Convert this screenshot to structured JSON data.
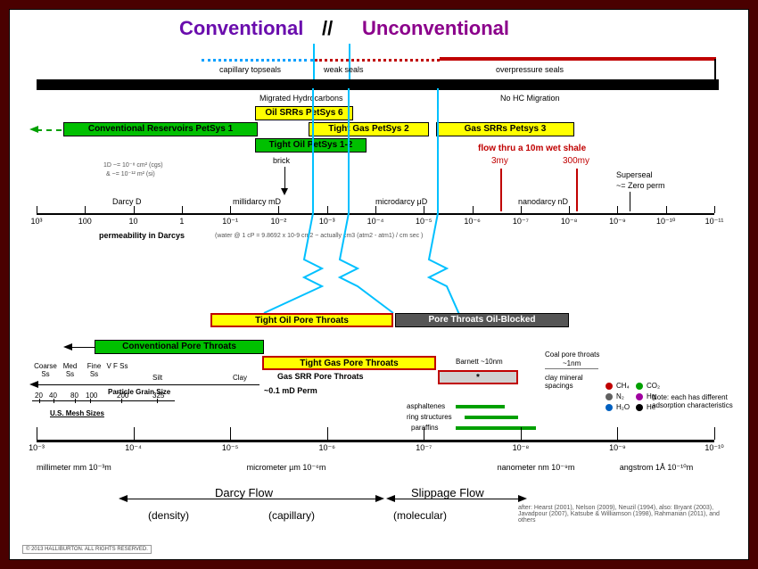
{
  "header": {
    "conventional": "Conventional",
    "separator": "//",
    "unconventional": "Unconventional"
  },
  "seals": {
    "capillary": "capillary topseals",
    "weak": "weak seals",
    "overpressure": "overpressure seals"
  },
  "hydrocarbons": {
    "migrated": "Migrated Hydrocarbons",
    "no_migration": "No HC Migration"
  },
  "bars_top": {
    "oil_srr": "Oil SRRs PetSys 6",
    "conv_res": "Conventional Reservoirs PetSys 1",
    "tight_gas": "Tight Gas PetSys 2",
    "gas_srr": "Gas SRRs Petsys 3",
    "tight_oil": "Tight Oil PetSys 1-2"
  },
  "annotations": {
    "brick": "brick",
    "darcy_d": "Darcy D",
    "darcy_note1": "1D ~= 10⁻⁸ cm² (cgs)",
    "darcy_note2": "& ~= 10⁻¹² m² (si)",
    "millidarcy": "millidarcy mD",
    "microdarcy": "microdarcy μD",
    "nanodarcy": "nanodarcy nD",
    "superseal": "Superseal",
    "zero_perm": "~= Zero perm",
    "flow_shale": "flow thru a 10m wet shale",
    "time_3my": "3my",
    "time_300my": "300my"
  },
  "axis_perm": {
    "label": "permeability in Darcys",
    "note": "(water @ 1 cP = 9.8692 x 10-9 cm2   ~   actually  cm3 (atm2 - atm1) / cm sec )",
    "ticks": [
      "10³",
      "100",
      "10",
      "1",
      "10⁻¹",
      "10⁻²",
      "10⁻³",
      "10⁻⁴",
      "10⁻⁵",
      "10⁻⁶",
      "10⁻⁷",
      "10⁻⁸",
      "10⁻⁹",
      "10⁻¹⁰",
      "10⁻¹¹"
    ]
  },
  "bars_mid": {
    "tight_oil_throats": "Tight Oil Pore Throats",
    "oil_blocked": "Pore Throats Oil-Blocked",
    "conv_throats": "Conventional Pore Throats",
    "tight_gas_throats": "Tight Gas Pore Throats",
    "gas_srr_throats": "Gas SRR Pore Throats",
    "barnett": "Barnett ~10nm",
    "star": "*",
    "coal_throats": "Coal pore throats",
    "coal_size": "~1nm",
    "clay_spacing": "clay mineral spacings",
    "perm_note": "~0.1 mD Perm"
  },
  "grainsize": {
    "coarse": "Coarse Ss",
    "med": "Med Ss",
    "fine": "Fine Ss",
    "vf": "V F Ss",
    "silt": "Silt",
    "clay": "Clay",
    "label": "Particle Grain Size",
    "mesh": "U.S. Mesh Sizes",
    "mesh_ticks": [
      "20",
      "40",
      "80",
      "100",
      "200",
      "325"
    ]
  },
  "molecules": {
    "asphaltenes": "asphaltenes",
    "ring": "ring structures",
    "paraffins": "paraffins",
    "note": "Note: each has different adsorption characteristics",
    "items": [
      {
        "label": "CH₄",
        "color": "#c00000"
      },
      {
        "label": "CO₂",
        "color": "#00a000"
      },
      {
        "label": "N₂",
        "color": "#606060"
      },
      {
        "label": "Hg",
        "color": "#a000a0"
      },
      {
        "label": "H₂O",
        "color": "#0060c0"
      },
      {
        "label": "He",
        "color": "#000000"
      }
    ]
  },
  "axis_size": {
    "ticks": [
      "10⁻³",
      "10⁻⁴",
      "10⁻⁵",
      "10⁻⁶",
      "10⁻⁷",
      "10⁻⁸",
      "10⁻⁹",
      "10⁻¹⁰"
    ],
    "mm": "millimeter mm 10⁻³m",
    "um": "micrometer µm 10⁻⁶m",
    "nm": "nanometer nm 10⁻⁹m",
    "ang": "angstrom 1Å 10⁻¹⁰m"
  },
  "flows": {
    "darcy": "Darcy Flow",
    "slippage": "Slippage Flow",
    "density": "(density)",
    "capillary": "(capillary)",
    "molecular": "(molecular)"
  },
  "refs": "after: Hearst (2001), Nelson (2009), Neuzil (1994), also: Bryant (2003), Javadpour (2007), Katsube & Williamson (1998), Rahmanian (2011), and others",
  "copyright": "© 2013 HALLIBURTON. ALL RIGHTS RESERVED."
}
